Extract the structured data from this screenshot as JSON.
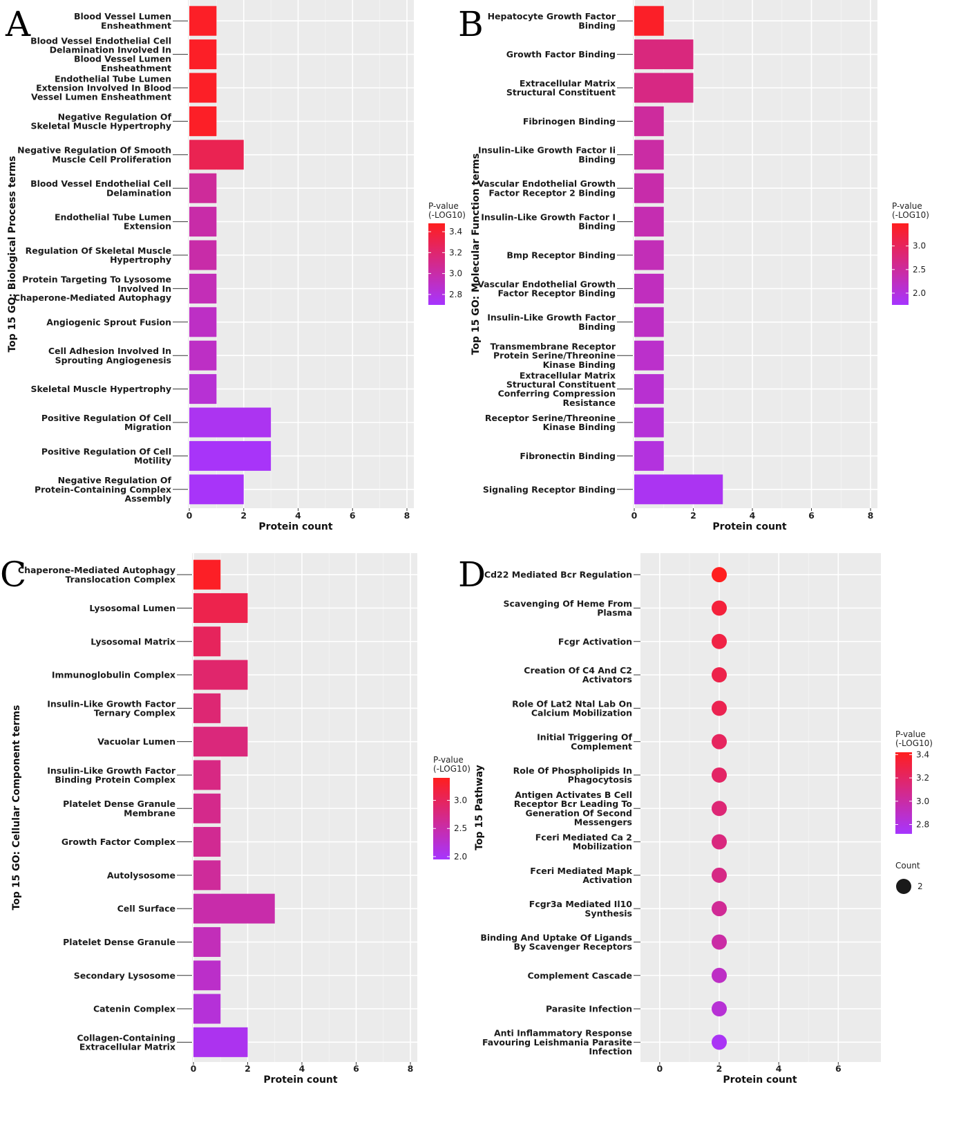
{
  "colors": {
    "high": "#ff1e1e",
    "low": "#a635ff",
    "panel_bg": "#ebebeb"
  },
  "chart_data": [
    {
      "panel": "A",
      "type": "bar",
      "orientation": "horizontal",
      "xlabel": "Protein count",
      "ylabel": "Top 15 GO: Biological Process terms",
      "xlim": [
        0,
        8
      ],
      "xticks": [
        0,
        2,
        4,
        6,
        8
      ],
      "categories": [
        [
          "Blood Vessel Lumen",
          "Ensheathment"
        ],
        [
          "Blood Vessel Endothelial Cell",
          "Delamination Involved In",
          "Blood Vessel Lumen",
          "Ensheathment"
        ],
        [
          "Endothelial Tube Lumen",
          "Extension Involved In Blood",
          "Vessel Lumen Ensheathment"
        ],
        [
          "Negative Regulation Of",
          "Skeletal Muscle Hypertrophy"
        ],
        [
          "Negative Regulation Of Smooth",
          "Muscle Cell Proliferation"
        ],
        [
          "Blood Vessel Endothelial Cell",
          "Delamination"
        ],
        [
          "Endothelial Tube Lumen",
          "Extension"
        ],
        [
          "Regulation Of Skeletal Muscle",
          "Hypertrophy"
        ],
        [
          "Protein Targeting To Lysosome",
          "Involved In",
          "Chaperone-Mediated Autophagy"
        ],
        [
          "Angiogenic Sprout Fusion"
        ],
        [
          "Cell Adhesion Involved In",
          "Sprouting Angiogenesis"
        ],
        [
          "Skeletal Muscle Hypertrophy"
        ],
        [
          "Positive Regulation Of Cell",
          "Migration"
        ],
        [
          "Positive Regulation Of Cell",
          "Motility"
        ],
        [
          "Negative Regulation Of",
          "Protein-Containing Complex",
          "Assembly"
        ]
      ],
      "values": [
        1,
        1,
        1,
        1,
        2,
        1,
        1,
        1,
        1,
        1,
        1,
        1,
        3,
        3,
        2
      ],
      "color_values": [
        3.45,
        3.45,
        3.45,
        3.45,
        3.3,
        3.05,
        3.0,
        3.0,
        2.95,
        2.9,
        2.9,
        2.85,
        2.75,
        2.72,
        2.72
      ],
      "legend": {
        "title": [
          "P-value",
          "(-LOG10)"
        ],
        "ticks": [
          "3.4",
          "3.2",
          "3.0",
          "2.8"
        ],
        "tick_values": [
          3.4,
          3.2,
          3.0,
          2.8
        ],
        "range": [
          2.7,
          3.48
        ]
      }
    },
    {
      "panel": "B",
      "type": "bar",
      "orientation": "horizontal",
      "xlabel": "Protein count",
      "ylabel": "Top 15 GO: Molecular Function terms",
      "xlim": [
        0,
        8
      ],
      "xticks": [
        0,
        2,
        4,
        6,
        8
      ],
      "categories": [
        [
          "Hepatocyte Growth Factor",
          "Binding"
        ],
        [
          "Growth Factor Binding"
        ],
        [
          "Extracellular Matrix",
          "Structural Constituent"
        ],
        [
          "Fibrinogen Binding"
        ],
        [
          "Insulin-Like Growth Factor Ii",
          "Binding"
        ],
        [
          "Vascular Endothelial Growth",
          "Factor Receptor 2 Binding"
        ],
        [
          "Insulin-Like Growth Factor I",
          "Binding"
        ],
        [
          "Bmp Receptor Binding"
        ],
        [
          "Vascular Endothelial Growth",
          "Factor Receptor Binding"
        ],
        [
          "Insulin-Like Growth Factor",
          "Binding"
        ],
        [
          "Transmembrane Receptor",
          "Protein Serine/Threonine",
          "Kinase Binding"
        ],
        [
          "Extracellular Matrix",
          "Structural Constituent",
          "Conferring Compression",
          "Resistance"
        ],
        [
          "Receptor Serine/Threonine",
          "Kinase Binding"
        ],
        [
          "Fibronectin Binding"
        ],
        [
          "Signaling Receptor Binding"
        ]
      ],
      "values": [
        1,
        2,
        2,
        1,
        1,
        1,
        1,
        1,
        1,
        1,
        1,
        1,
        1,
        1,
        3
      ],
      "color_values": [
        3.4,
        2.75,
        2.7,
        2.5,
        2.45,
        2.4,
        2.35,
        2.3,
        2.25,
        2.2,
        2.15,
        2.1,
        2.05,
        2.0,
        1.85
      ],
      "legend": {
        "title": [
          "P-value",
          "(-LOG10)"
        ],
        "ticks": [
          "3.0",
          "2.5",
          "2.0"
        ],
        "tick_values": [
          3.0,
          2.5,
          2.0
        ],
        "range": [
          1.75,
          3.48
        ]
      }
    },
    {
      "panel": "C",
      "type": "bar",
      "orientation": "horizontal",
      "xlabel": "Protein count",
      "ylabel": "Top 15 GO: Cellular Component terms",
      "xlim": [
        0,
        8
      ],
      "xticks": [
        0,
        2,
        4,
        6,
        8
      ],
      "categories": [
        [
          "Chaperone-Mediated Autophagy",
          "Translocation Complex"
        ],
        [
          "Lysosomal Lumen"
        ],
        [
          "Lysosomal Matrix"
        ],
        [
          "Immunoglobulin Complex"
        ],
        [
          "Insulin-Like Growth Factor",
          "Ternary Complex"
        ],
        [
          "Vacuolar Lumen"
        ],
        [
          "Insulin-Like Growth Factor",
          "Binding Protein Complex"
        ],
        [
          "Platelet Dense Granule",
          "Membrane"
        ],
        [
          "Growth Factor Complex"
        ],
        [
          "Autolysosome"
        ],
        [
          "Cell Surface"
        ],
        [
          "Platelet Dense Granule"
        ],
        [
          "Secondary Lysosome"
        ],
        [
          "Catenin Complex"
        ],
        [
          "Collagen-Containing",
          "Extracellular Matrix"
        ]
      ],
      "values": [
        1,
        2,
        1,
        2,
        1,
        2,
        1,
        1,
        1,
        1,
        3,
        1,
        1,
        1,
        2
      ],
      "color_values": [
        3.35,
        3.1,
        3.0,
        2.9,
        2.85,
        2.8,
        2.75,
        2.7,
        2.65,
        2.6,
        2.5,
        2.4,
        2.3,
        2.2,
        2.05
      ],
      "legend": {
        "title": [
          "P-value",
          "(-LOG10)"
        ],
        "ticks": [
          "3.0",
          "2.5",
          "2.0"
        ],
        "tick_values": [
          3.0,
          2.5,
          2.0
        ],
        "range": [
          1.95,
          3.4
        ]
      }
    },
    {
      "panel": "D",
      "type": "scatter",
      "xlabel": "Protein count",
      "ylabel": "Top 15 Pathway",
      "xlim": [
        -0.6,
        7.2
      ],
      "xticks": [
        0,
        2,
        4,
        6
      ],
      "categories": [
        [
          "Cd22 Mediated Bcr Regulation"
        ],
        [
          "Scavenging Of Heme From",
          "Plasma"
        ],
        [
          "Fcgr Activation"
        ],
        [
          "Creation Of C4 And C2",
          "Activators"
        ],
        [
          "Role Of Lat2 Ntal Lab On",
          "Calcium Mobilization"
        ],
        [
          "Initial Triggering Of",
          "Complement"
        ],
        [
          "Role Of Phospholipids In",
          "Phagocytosis"
        ],
        [
          "Antigen Activates B Cell",
          "Receptor Bcr Leading To",
          "Generation Of Second",
          "Messengers"
        ],
        [
          "Fceri Mediated Ca 2",
          "Mobilization"
        ],
        [
          "Fceri Mediated Mapk",
          "Activation"
        ],
        [
          "Fcgr3a Mediated Il10",
          "Synthesis"
        ],
        [
          "Binding And Uptake Of Ligands",
          "By Scavenger Receptors"
        ],
        [
          "Complement Cascade"
        ],
        [
          "Parasite Infection"
        ],
        [
          "Anti Inflammatory Response",
          "Favouring Leishmania Parasite",
          "Infection"
        ]
      ],
      "values": [
        2,
        2,
        2,
        2,
        2,
        2,
        2,
        2,
        2,
        2,
        2,
        2,
        2,
        2,
        2
      ],
      "color_values": [
        3.42,
        3.33,
        3.3,
        3.28,
        3.26,
        3.22,
        3.2,
        3.15,
        3.12,
        3.1,
        3.05,
        3.0,
        2.9,
        2.85,
        2.75
      ],
      "legend": {
        "title": [
          "P-value",
          "(-LOG10)"
        ],
        "ticks": [
          "3.4",
          "3.2",
          "3.0",
          "2.8"
        ],
        "tick_values": [
          3.4,
          3.2,
          3.0,
          2.8
        ],
        "range": [
          2.72,
          3.42
        ]
      },
      "size_legend": {
        "title": "Count",
        "value": "2"
      }
    }
  ]
}
